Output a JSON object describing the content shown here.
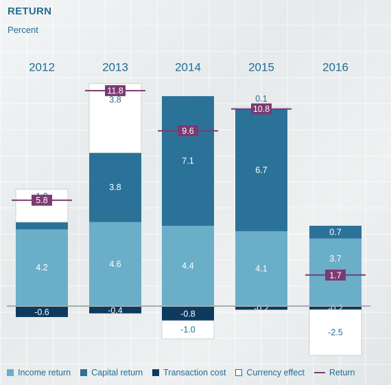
{
  "title": "RETURN",
  "subtitle": "Percent",
  "colors": {
    "income": "#6aaec8",
    "capital": "#2b7299",
    "transaction": "#0d3a5f",
    "currency": "#ffffff",
    "return": "#7b3a72",
    "text_light": "#ffffff",
    "text_dark": "#1f6d92"
  },
  "chart_data": {
    "type": "bar",
    "stacked": true,
    "categories": [
      "2012",
      "2013",
      "2014",
      "2015",
      "2016"
    ],
    "series": [
      {
        "name": "Income return",
        "values": [
          4.2,
          4.6,
          4.4,
          4.1,
          3.7
        ]
      },
      {
        "name": "Capital return",
        "values": [
          0.4,
          3.8,
          7.1,
          6.7,
          0.7
        ]
      },
      {
        "name": "Transaction cost",
        "values": [
          -0.6,
          -0.4,
          -0.8,
          -0.2,
          -0.2
        ]
      },
      {
        "name": "Currency effect",
        "values": [
          1.8,
          3.8,
          -1.0,
          0.1,
          -2.5
        ]
      }
    ],
    "overlay": {
      "name": "Return",
      "type": "marker",
      "values": [
        5.8,
        11.8,
        9.6,
        10.8,
        1.7
      ]
    },
    "legend": [
      "Income return",
      "Capital return",
      "Transaction cost",
      "Currency effect",
      "Return"
    ],
    "legend_position": "bottom"
  }
}
